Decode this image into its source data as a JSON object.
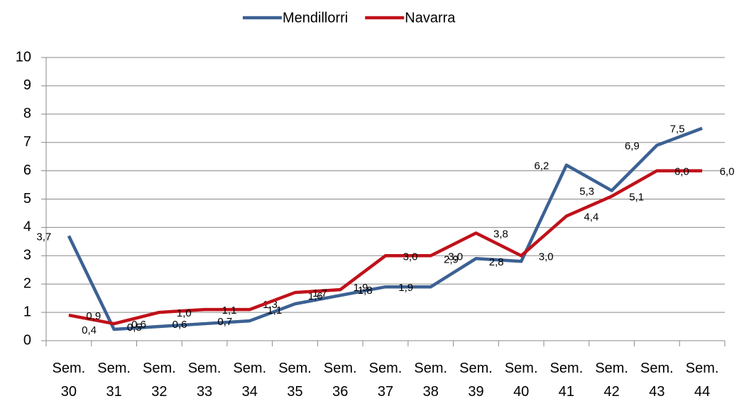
{
  "chart_data": {
    "type": "line",
    "categories": [
      "Sem. 30",
      "Sem. 31",
      "Sem. 32",
      "Sem. 33",
      "Sem. 34",
      "Sem. 35",
      "Sem. 36",
      "Sem. 37",
      "Sem. 38",
      "Sem. 39",
      "Sem. 40",
      "Sem. 41",
      "Sem. 42",
      "Sem. 43",
      "Sem. 44"
    ],
    "series": [
      {
        "name": "Mendillorri",
        "color": "#3c6193",
        "values": [
          3.7,
          0.4,
          0.5,
          0.6,
          0.7,
          1.3,
          1.6,
          1.9,
          1.9,
          2.9,
          2.8,
          6.2,
          5.3,
          6.9,
          7.5
        ],
        "value_labels": [
          "3,7",
          "0,4",
          "0,5",
          "0,6",
          "0,7",
          "1,3",
          "1,6",
          "1,9",
          "1,9",
          "2,9",
          "2,8",
          "6,2",
          "5,3",
          "6,9",
          "7,5"
        ]
      },
      {
        "name": "Navarra",
        "color": "#c0111a",
        "values": [
          0.9,
          0.6,
          1.0,
          1.1,
          1.1,
          1.7,
          1.8,
          3.0,
          3.0,
          3.8,
          3.0,
          4.4,
          5.1,
          6.0,
          6.0
        ],
        "value_labels": [
          "0,9",
          "0,6",
          "1,0",
          "1,1",
          "1,1",
          "1,7",
          "1,8",
          "3,0",
          "3,0",
          "3,8",
          "3,0",
          "4,4",
          "5,1",
          "6,0",
          "6,0"
        ]
      }
    ],
    "ylim": [
      0,
      10
    ],
    "yticks": [
      0,
      1,
      2,
      3,
      4,
      5,
      6,
      7,
      8,
      9,
      10
    ],
    "grid": true,
    "legend": "top"
  }
}
